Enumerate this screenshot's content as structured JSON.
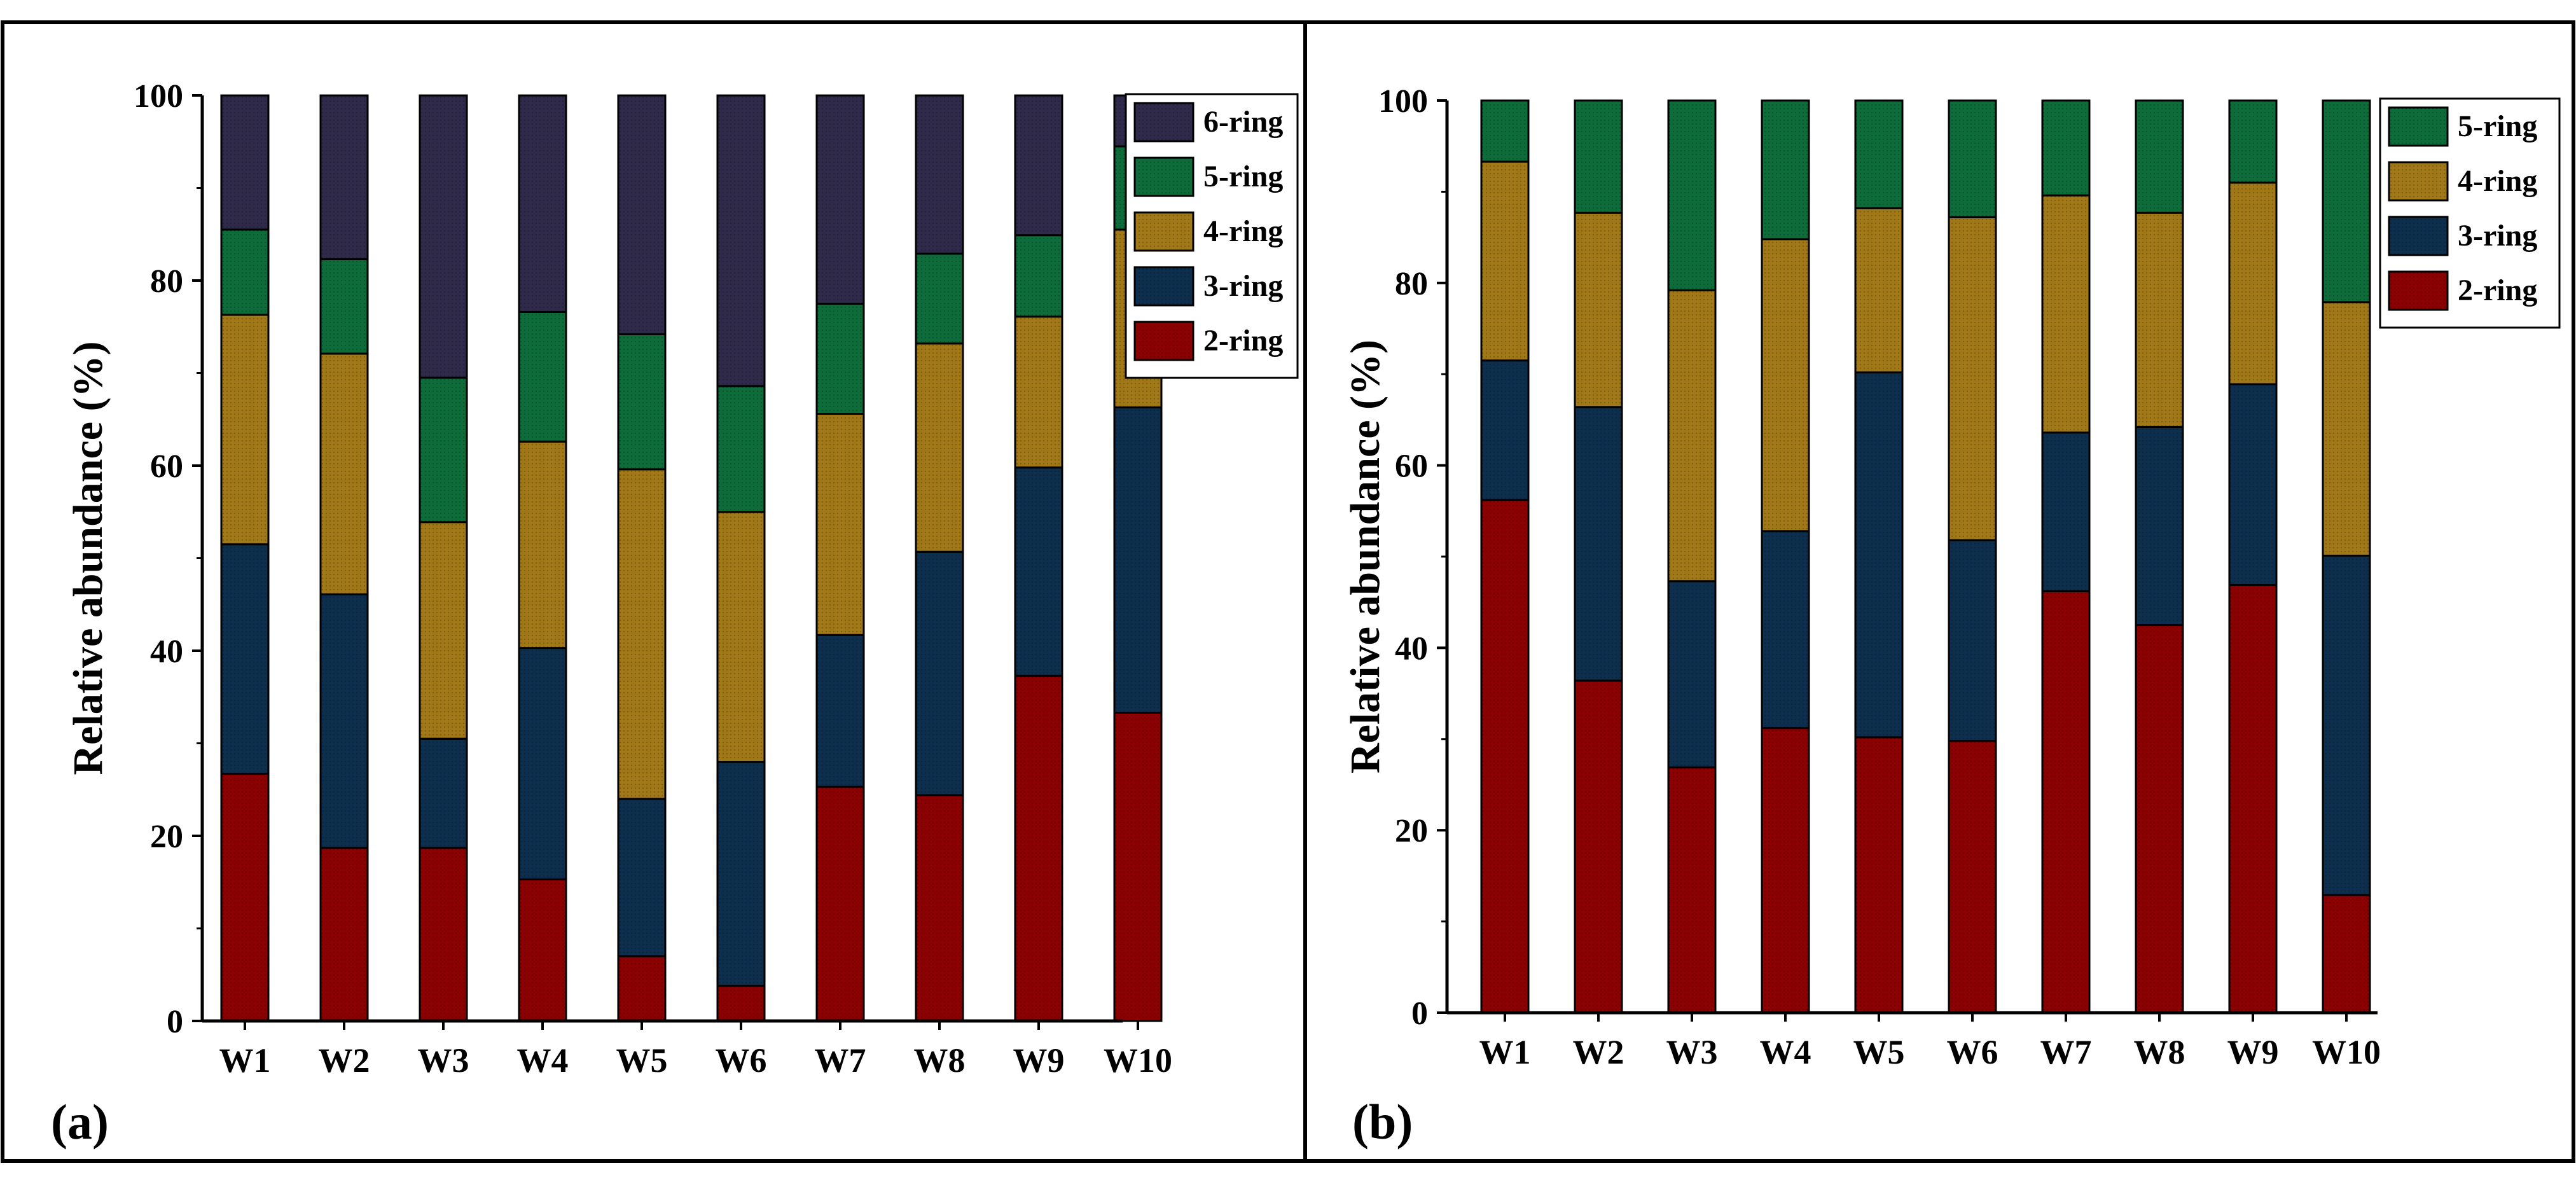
{
  "figure": {
    "panels": [
      {
        "panel_label": "(a)",
        "colors": {
          "2-ring": "#8b0000",
          "3-ring": "#0d2f4d",
          "4-ring": "#a07818",
          "5-ring": "#0e6b3a",
          "6-ring": "#302a4a"
        }
      },
      {
        "panel_label": "(b)",
        "colors": {
          "2-ring": "#8b0000",
          "3-ring": "#0d2f4d",
          "4-ring": "#a07818",
          "5-ring": "#0e6b3a"
        }
      }
    ]
  },
  "chart_data": [
    {
      "type": "bar",
      "stacked": true,
      "ylabel": "Relative abundance (%)",
      "xlabel": "",
      "ylim": [
        0,
        100
      ],
      "yticks": [
        0,
        20,
        40,
        60,
        80,
        100
      ],
      "categories": [
        "W1",
        "W2",
        "W3",
        "W4",
        "W5",
        "W6",
        "W7",
        "W8",
        "W9",
        "W10"
      ],
      "legend_placement": "top-right",
      "legend_order": [
        "6-ring",
        "5-ring",
        "4-ring",
        "3-ring",
        "2-ring"
      ],
      "series": [
        {
          "name": "2-ring",
          "values": [
            26.7,
            18.7,
            18.7,
            15.3,
            7.0,
            3.8,
            25.3,
            24.4,
            37.3,
            33.3
          ]
        },
        {
          "name": "3-ring",
          "values": [
            24.8,
            27.4,
            11.8,
            25.0,
            17.0,
            24.2,
            16.4,
            26.3,
            22.5,
            33.0
          ]
        },
        {
          "name": "4-ring",
          "values": [
            24.8,
            26.0,
            23.4,
            22.3,
            35.6,
            27.0,
            23.9,
            22.5,
            16.3,
            19.2
          ]
        },
        {
          "name": "5-ring",
          "values": [
            9.2,
            10.2,
            15.6,
            14.0,
            14.6,
            13.6,
            11.9,
            9.7,
            8.8,
            9.0
          ]
        },
        {
          "name": "6-ring",
          "values": [
            14.5,
            17.7,
            30.5,
            23.4,
            25.8,
            31.4,
            22.5,
            17.1,
            15.1,
            5.5
          ]
        }
      ]
    },
    {
      "type": "bar",
      "stacked": true,
      "ylabel": "Relative abundance (%)",
      "xlabel": "",
      "ylim": [
        0,
        100
      ],
      "yticks": [
        0,
        20,
        40,
        60,
        80,
        100
      ],
      "categories": [
        "W1",
        "W2",
        "W3",
        "W4",
        "W5",
        "W6",
        "W7",
        "W8",
        "W9",
        "W10"
      ],
      "legend_placement": "top-right",
      "legend_order": [
        "5-ring",
        "4-ring",
        "3-ring",
        "2-ring"
      ],
      "series": [
        {
          "name": "2-ring",
          "values": [
            56.2,
            36.4,
            26.9,
            31.2,
            30.2,
            29.8,
            46.2,
            42.5,
            46.9,
            12.9
          ]
        },
        {
          "name": "3-ring",
          "values": [
            15.3,
            30.0,
            20.4,
            21.6,
            40.0,
            22.0,
            17.4,
            21.7,
            22.0,
            37.2
          ]
        },
        {
          "name": "4-ring",
          "values": [
            21.8,
            21.3,
            31.9,
            32.0,
            18.0,
            35.4,
            26.0,
            23.5,
            22.1,
            27.8
          ]
        },
        {
          "name": "5-ring",
          "values": [
            6.7,
            12.3,
            20.8,
            15.2,
            11.8,
            12.8,
            10.4,
            12.3,
            9.0,
            22.1
          ]
        }
      ]
    }
  ]
}
